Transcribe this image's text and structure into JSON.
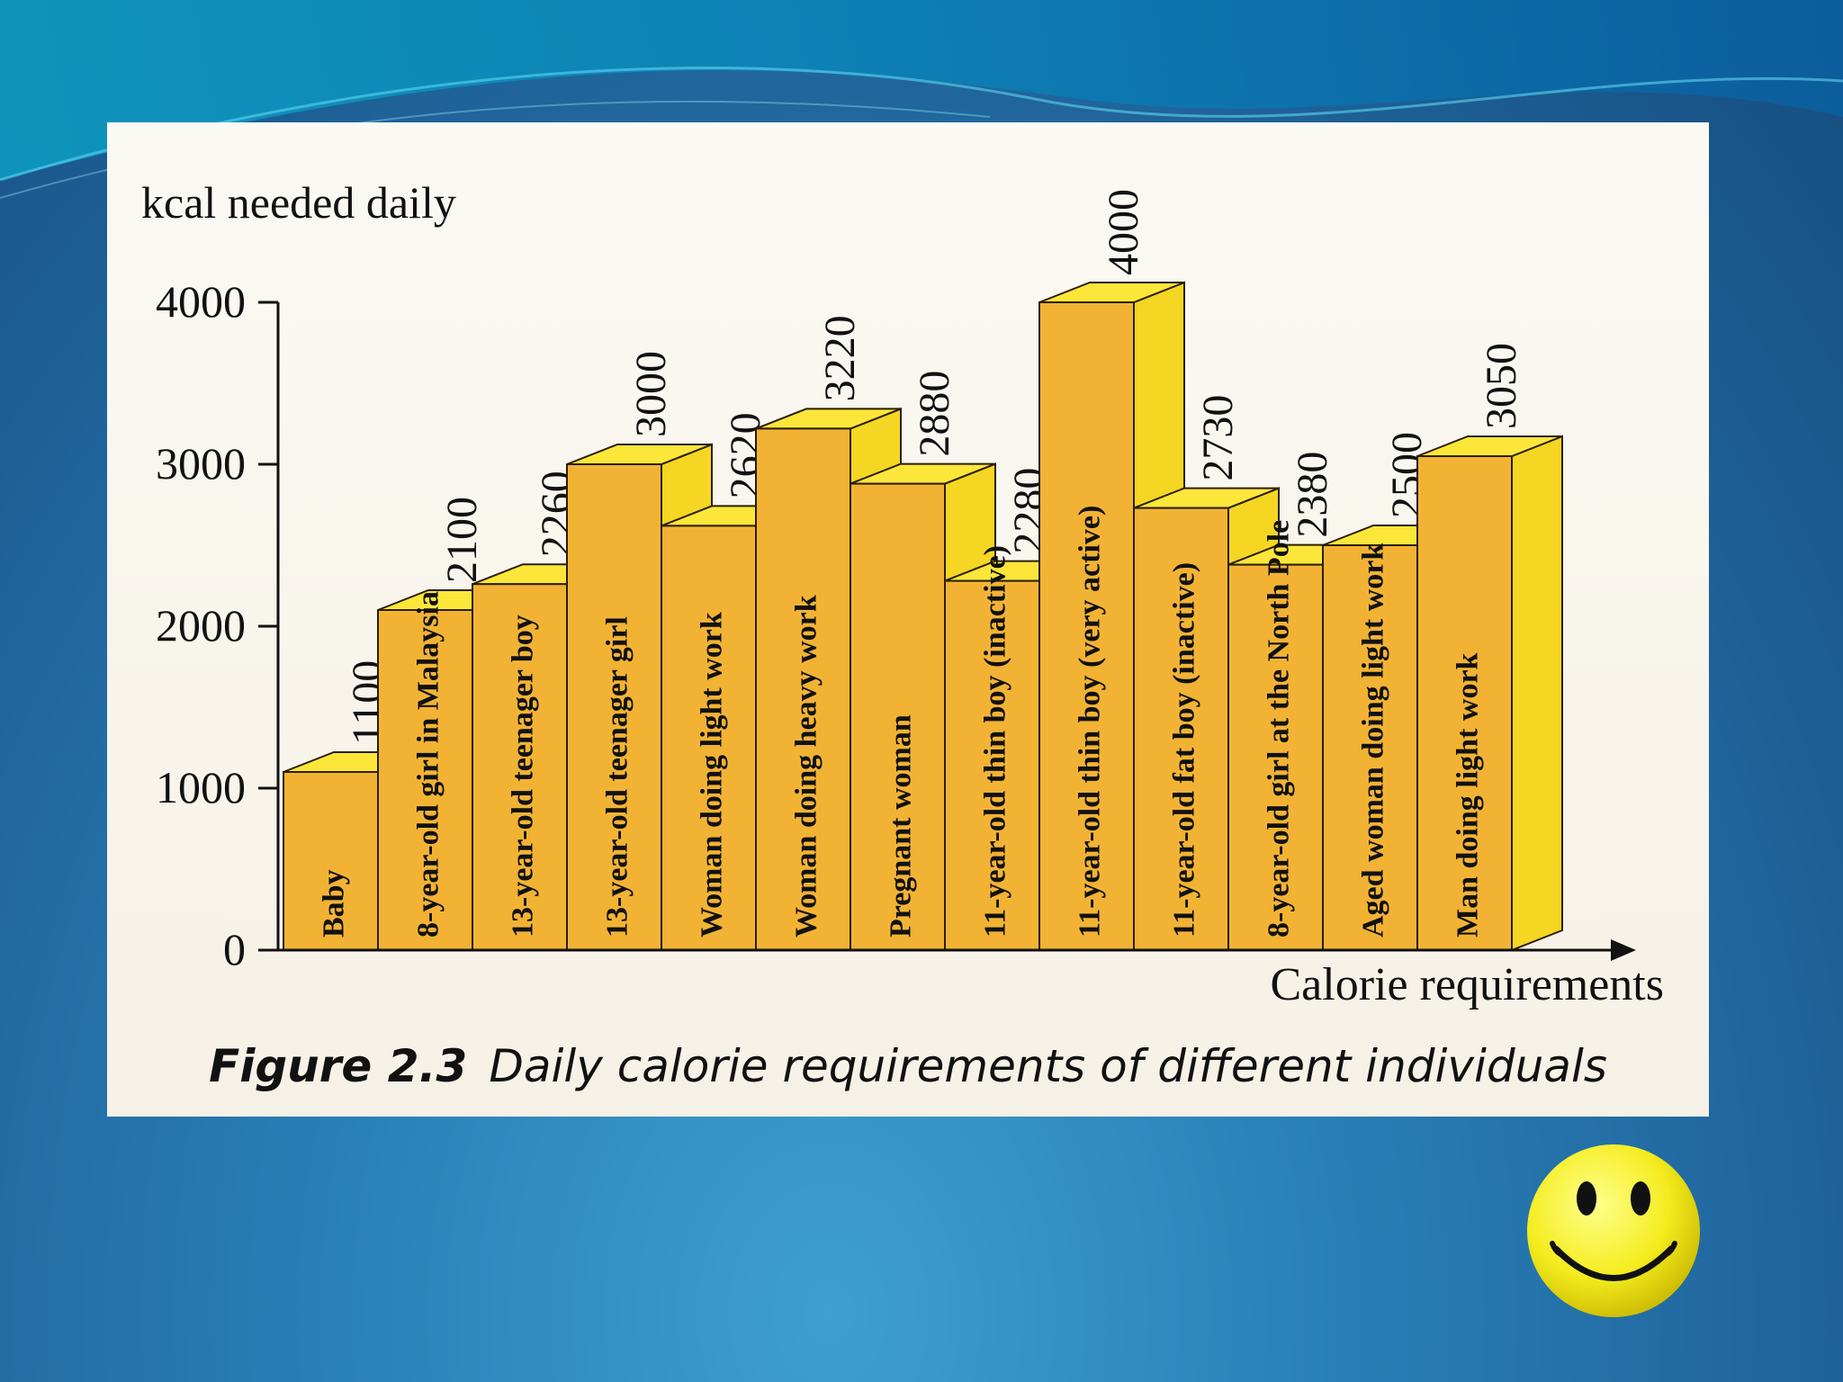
{
  "figure": {
    "caption_label": "Figure 2.3",
    "caption_text": "Daily calorie requirements of different individuals"
  },
  "chart_data": {
    "type": "bar",
    "title": "",
    "ylabel": "kcal needed daily",
    "xlabel": "Calorie requirements",
    "ylim": [
      0,
      4000
    ],
    "yticks": [
      0,
      1000,
      2000,
      3000,
      4000
    ],
    "categories": [
      "Baby",
      "8-year-old girl in Malaysia",
      "13-year-old teenager boy",
      "13-year-old teenager girl",
      "Woman doing light work",
      "Woman doing heavy work",
      "Pregnant woman",
      "11-year-old thin boy (inactive)",
      "11-year-old thin boy (very active)",
      "11-year-old fat boy (inactive)",
      "8-year-old girl at the North Pole",
      "Aged woman doing light work",
      "Man doing light work"
    ],
    "values": [
      1100,
      2100,
      2260,
      3000,
      2620,
      3220,
      2880,
      2280,
      4000,
      2730,
      2380,
      2500,
      3050
    ],
    "bar_color": "#f2b335",
    "bar_top_color": "#fde63a",
    "bar_side_color": "#f5d623",
    "grid": false
  },
  "decor": {
    "smiley": "smiley-face-icon"
  }
}
